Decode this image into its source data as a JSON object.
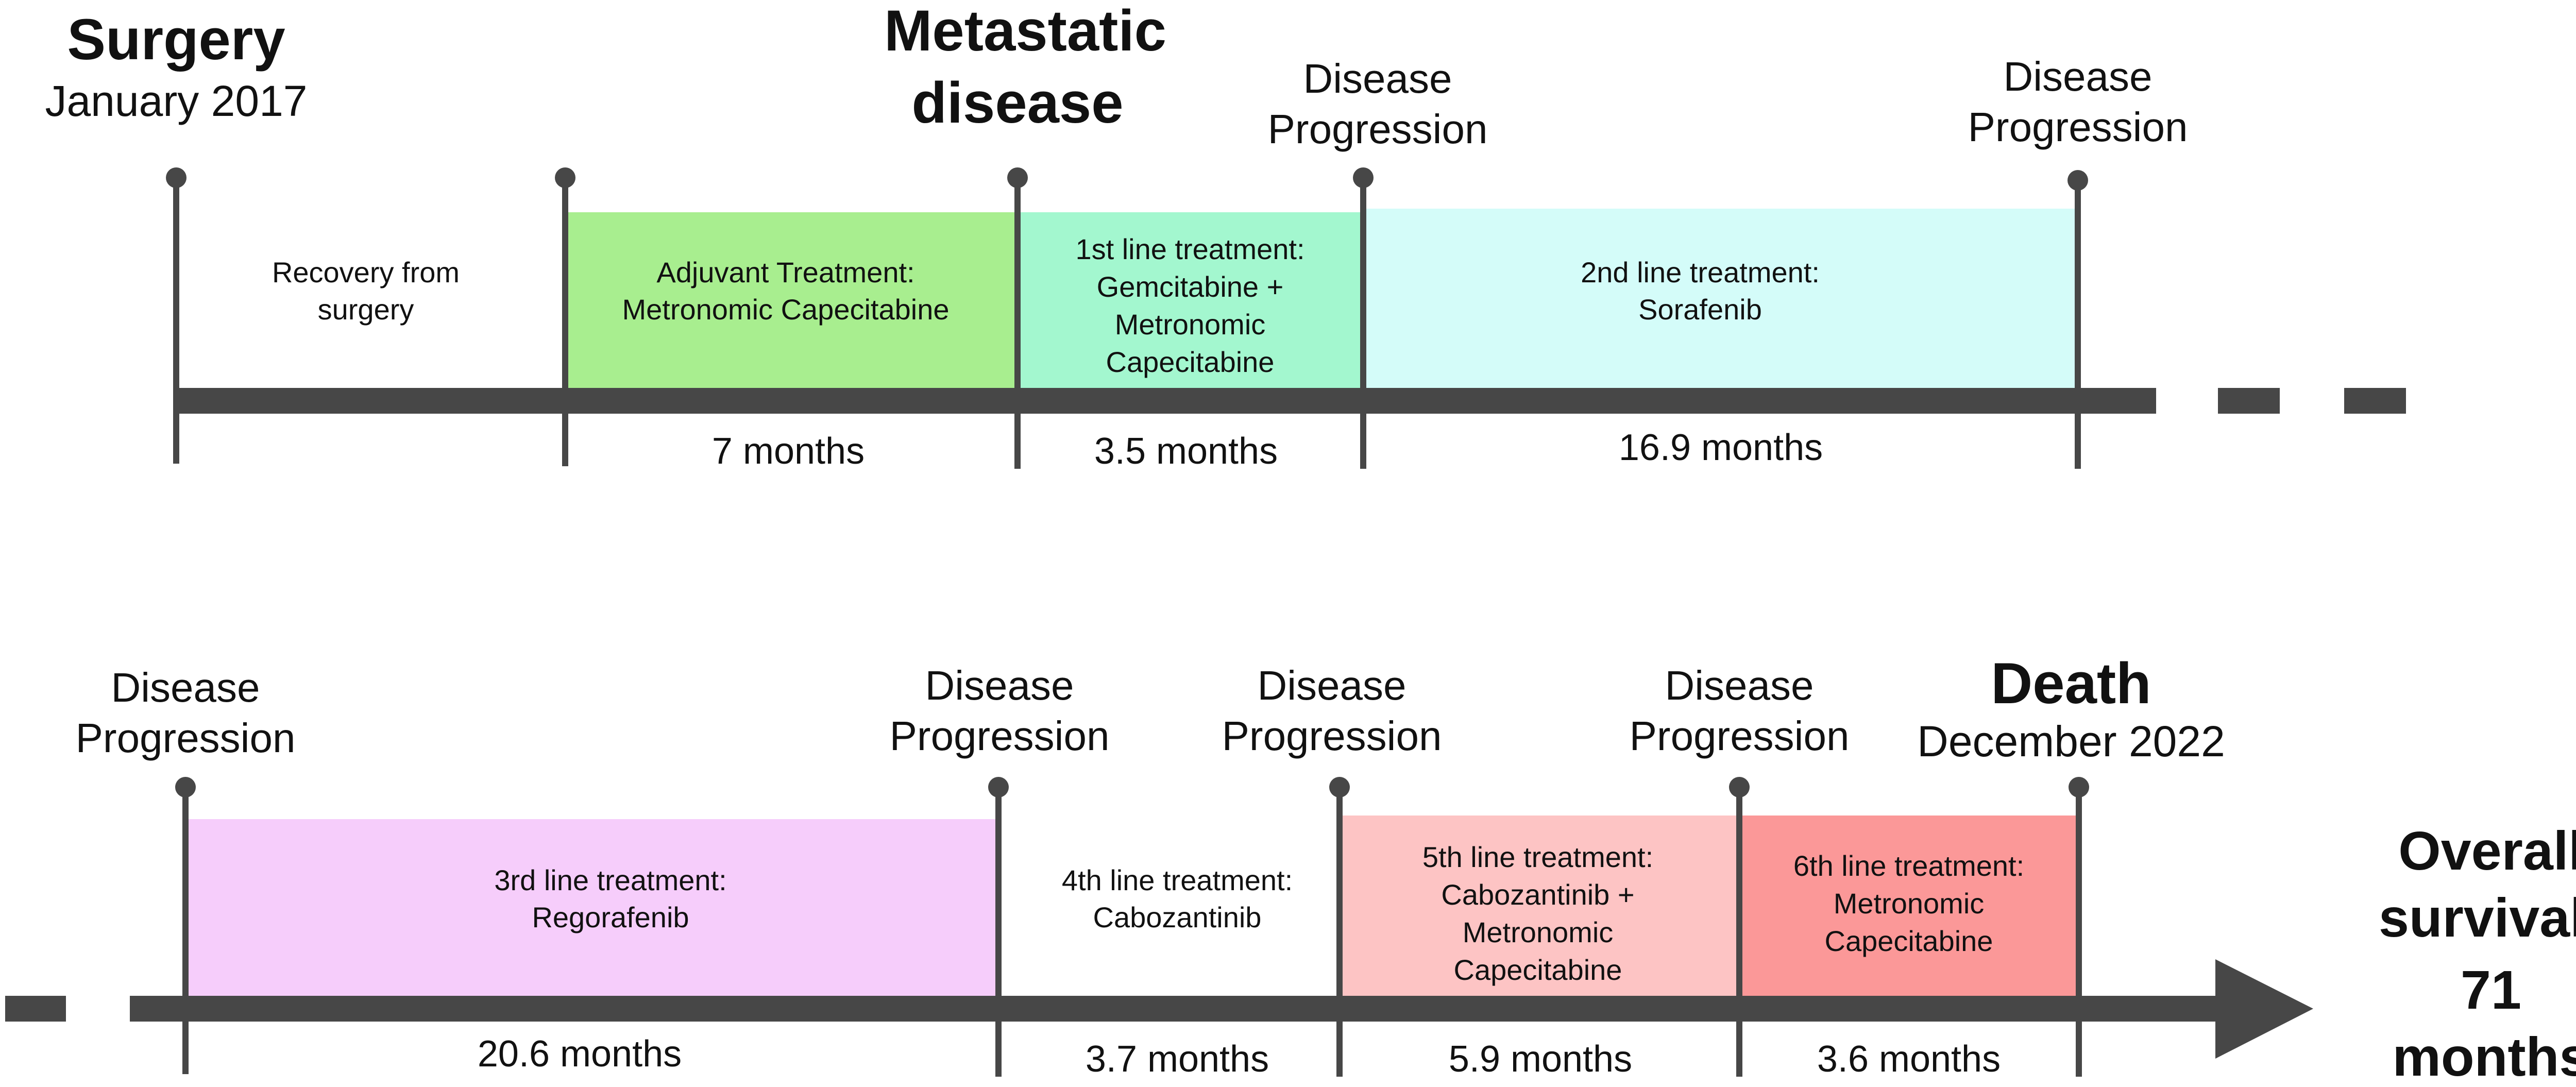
{
  "colors": {
    "line": "#474747",
    "adjuvant": "#a8ee8f",
    "first_line": "#a3f7cf",
    "second_line": "#d4fcf9",
    "third_line": "#f6cdfb",
    "fifth_line": "#fdc4c4",
    "sixth_line": "#fb9898"
  },
  "top": {
    "surgery": {
      "title": "Surgery",
      "date": "January 2017"
    },
    "metastatic": {
      "line1": "Metastatic",
      "line2": "disease"
    },
    "prog1": {
      "line1": "Disease",
      "line2": "Progression"
    },
    "prog2": {
      "line1": "Disease",
      "line2": "Progression"
    },
    "recovery": {
      "line1": "Recovery from",
      "line2": "surgery"
    },
    "adjuvant": {
      "line1": "Adjuvant Treatment:",
      "line2": "Metronomic Capecitabine"
    },
    "first_line": {
      "line1": "1st line treatment:",
      "line2": "Gemcitabine +",
      "line3": "Metronomic",
      "line4": "Capecitabine"
    },
    "second_line": {
      "line1": "2nd line treatment:",
      "line2": "Sorafenib"
    },
    "durations": [
      "7 months",
      "3.5 months",
      "16.9 months"
    ]
  },
  "bottom": {
    "prog1": {
      "line1": "Disease",
      "line2": "Progression"
    },
    "prog2": {
      "line1": "Disease",
      "line2": "Progression"
    },
    "prog3": {
      "line1": "Disease",
      "line2": "Progression"
    },
    "prog4": {
      "line1": "Disease",
      "line2": "Progression"
    },
    "death": {
      "title": "Death",
      "date": "December 2022"
    },
    "third_line": {
      "line1": "3rd line treatment:",
      "line2": "Regorafenib"
    },
    "fourth_line": {
      "line1": "4th line treatment:",
      "line2": "Cabozantinib"
    },
    "fifth_line": {
      "line1": "5th line treatment:",
      "line2": "Cabozantinib +",
      "line3": "Metronomic",
      "line4": "Capecitabine"
    },
    "sixth_line": {
      "line1": "6th line treatment:",
      "line2": "Metronomic",
      "line3": "Capecitabine"
    },
    "durations": [
      "20.6 months",
      "3.7 months",
      "5.9 months",
      "3.6 months"
    ]
  },
  "overall": {
    "line1": "Overall",
    "line2": "survival:",
    "line3": "71",
    "line4": "months"
  }
}
